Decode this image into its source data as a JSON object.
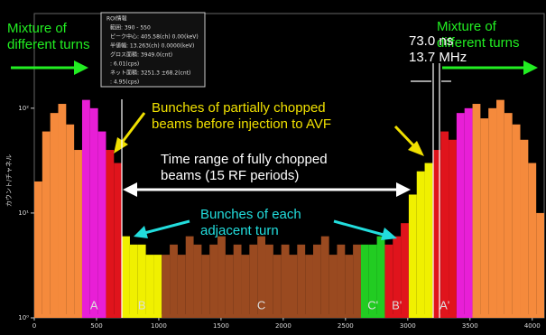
{
  "chart_data": {
    "type": "histogram",
    "y_label": "カウント/チャネル",
    "bins": [
      0,
      64,
      128,
      192,
      256,
      320,
      384,
      448,
      512,
      576,
      640,
      704,
      768,
      832,
      896,
      960,
      1024,
      1088,
      1152,
      1216,
      1280,
      1344,
      1408,
      1472,
      1536,
      1600,
      1664,
      1728,
      1792,
      1856,
      1920,
      1984,
      2048,
      2112,
      2176,
      2240,
      2304,
      2368,
      2432,
      2496,
      2560,
      2624,
      2688,
      2752,
      2816,
      2880,
      2944,
      3008,
      3072,
      3136,
      3200,
      3264,
      3328,
      3392,
      3456,
      3520,
      3584,
      3648,
      3712,
      3776,
      3840,
      3904,
      3968,
      4032,
      4096
    ],
    "values": [
      20,
      60,
      90,
      110,
      70,
      40,
      120,
      100,
      60,
      40,
      30,
      6,
      5,
      5,
      4,
      4,
      4,
      5,
      4,
      6,
      5,
      4,
      5,
      6,
      4,
      5,
      4,
      5,
      6,
      5,
      4,
      5,
      4,
      5,
      4,
      5,
      6,
      4,
      5,
      4,
      5,
      5,
      5,
      6,
      5,
      6,
      8,
      15,
      25,
      30,
      40,
      60,
      50,
      90,
      100,
      110,
      80,
      100,
      120,
      90,
      70,
      50,
      30,
      10
    ],
    "regions": [
      {
        "from": 0,
        "to": 384,
        "color": "#f58a3c"
      },
      {
        "from": 384,
        "to": 576,
        "color": "#e81fd6",
        "label": "A"
      },
      {
        "from": 576,
        "to": 704,
        "color": "#e0141c"
      },
      {
        "from": 704,
        "to": 1024,
        "color": "#f0f000",
        "label": "B"
      },
      {
        "from": 1024,
        "to": 2624,
        "color": "#9a4a20",
        "label": "C"
      },
      {
        "from": 2624,
        "to": 2816,
        "color": "#22cc22",
        "label": "C'"
      },
      {
        "from": 2816,
        "to": 3008,
        "color": "#e0141c",
        "label": "B'"
      },
      {
        "from": 3008,
        "to": 3200,
        "color": "#f0f000"
      },
      {
        "from": 3200,
        "to": 3392,
        "color": "#e0141c",
        "label": "A'"
      },
      {
        "from": 3392,
        "to": 3520,
        "color": "#e81fd6"
      },
      {
        "from": 3520,
        "to": 4096,
        "color": "#f58a3c"
      }
    ],
    "xlim": [
      0,
      4096
    ],
    "xticks": [
      0,
      500,
      1000,
      1500,
      2000,
      2500,
      3000,
      3500,
      4000
    ],
    "ylim": [
      1,
      800
    ],
    "log_y": true,
    "yticks": [
      {
        "value": 1,
        "label": "10⁰"
      },
      {
        "value": 10,
        "label": "10¹"
      },
      {
        "value": 100,
        "label": "10²"
      }
    ],
    "annotations": {
      "mixture_left": [
        "Mixture of",
        "different turns"
      ],
      "mixture_right": [
        "Mixture of",
        "different turns"
      ],
      "timing": [
        "73.0 ns",
        "13.7 MHz"
      ],
      "partial": [
        "Bunches of partially chopped",
        "beams before injection to AVF"
      ],
      "full": [
        "Time range of fully chopped",
        "beams (15 RF periods)"
      ],
      "adjacent": [
        "Bunches of each",
        "adjacent turn"
      ]
    },
    "inset": [
      "ROI情報",
      "範囲: 390 - 550",
      "ピーク中心: 405.58(ch) 0.00(keV)",
      "半値幅: 13.263(ch) 0.0000(keV)",
      "グロス面積: 3949.0(cnt)",
      ": 6.01(cps)",
      "ネット面積: 3251.3 ±68.2(cnt)",
      ": 4.95(cps)"
    ]
  }
}
